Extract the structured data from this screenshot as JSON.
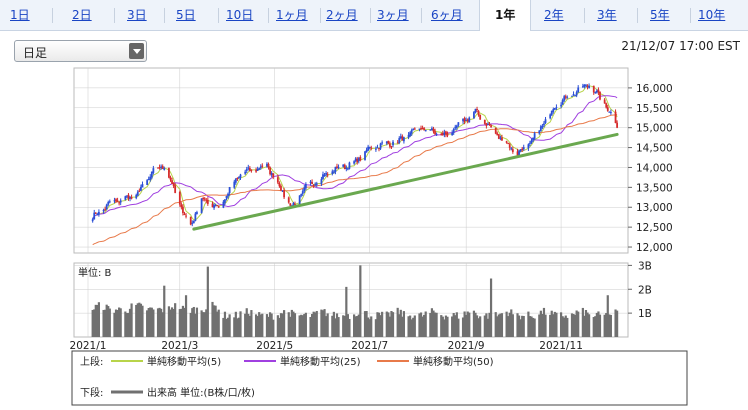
{
  "tabs": [
    {
      "label": "1日",
      "active": false
    },
    {
      "label": "2日",
      "active": false
    },
    {
      "label": "3日",
      "active": false
    },
    {
      "label": "5日",
      "active": false
    },
    {
      "label": "10日",
      "active": false
    },
    {
      "label": "1ヶ月",
      "active": false
    },
    {
      "label": "2ヶ月",
      "active": false
    },
    {
      "label": "3ヶ月",
      "active": false
    },
    {
      "label": "6ヶ月",
      "active": false
    },
    {
      "label": "1年",
      "active": true
    },
    {
      "label": "2年",
      "active": false
    },
    {
      "label": "3年",
      "active": false
    },
    {
      "label": "5年",
      "active": false
    },
    {
      "label": "10年",
      "active": false
    }
  ],
  "period_select": {
    "value": "日足"
  },
  "timestamp": "21/12/07 17:00 EST",
  "colors": {
    "up": "#2b4fd6",
    "down": "#d62b2b",
    "ma5": "#b8d44a",
    "ma25": "#a040e0",
    "ma50": "#e87a4a",
    "trend": "#6aa84f",
    "volume": "#707070",
    "grid": "#cccccc"
  },
  "chart_data": [
    {
      "type": "candlestick",
      "x_ticks": [
        "2021/1",
        "2021/3",
        "2021/5",
        "2021/7",
        "2021/9",
        "2021/11"
      ],
      "y_ticks": [
        "16,000",
        "15,500",
        "15,000",
        "14,500",
        "14,000",
        "13,500",
        "13,000",
        "12,500",
        "12,000"
      ],
      "ylim": [
        11850,
        16500
      ],
      "grid": true,
      "close_anchors": [
        [
          "2021-01-04",
          12750
        ],
        [
          "2021-01-15",
          13100
        ],
        [
          "2021-02-01",
          13300
        ],
        [
          "2021-02-12",
          13900
        ],
        [
          "2021-02-19",
          14050
        ],
        [
          "2021-03-04",
          12800
        ],
        [
          "2021-03-08",
          12550
        ],
        [
          "2021-03-15",
          13200
        ],
        [
          "2021-03-26",
          13000
        ],
        [
          "2021-04-09",
          13850
        ],
        [
          "2021-04-26",
          14050
        ],
        [
          "2021-05-12",
          13000
        ],
        [
          "2021-05-21",
          13500
        ],
        [
          "2021-06-08",
          13950
        ],
        [
          "2021-06-21",
          14100
        ],
        [
          "2021-07-01",
          14500
        ],
        [
          "2021-07-19",
          14650
        ],
        [
          "2021-08-02",
          15000
        ],
        [
          "2021-08-19",
          14800
        ],
        [
          "2021-09-07",
          15400
        ],
        [
          "2021-09-20",
          14850
        ],
        [
          "2021-10-04",
          14350
        ],
        [
          "2021-10-13",
          14650
        ],
        [
          "2021-10-29",
          15600
        ],
        [
          "2021-11-19",
          16100
        ],
        [
          "2021-11-30",
          15550
        ],
        [
          "2021-12-07",
          15050
        ]
      ],
      "overlays": [
        {
          "name": "単純移動平均(5)",
          "period": 5
        },
        {
          "name": "単純移動平均(25)",
          "period": 25
        },
        {
          "name": "単純移動平均(50)",
          "period": 50
        }
      ],
      "trendline": [
        [
          "2021-03-10",
          12450
        ],
        [
          "2021-12-07",
          14830
        ]
      ]
    },
    {
      "type": "bar",
      "y_ticks": [
        "3B",
        "2B",
        "1B"
      ],
      "ylim": [
        0,
        3.1
      ],
      "unit_label": "単位: B",
      "baseline": 0.9,
      "spikes": [
        [
          "2021-03-05",
          1.75
        ],
        [
          "2021-03-19",
          2.95
        ],
        [
          "2021-02-19",
          2.15
        ],
        [
          "2021-06-16",
          2.1
        ],
        [
          "2021-06-25",
          3.0
        ],
        [
          "2021-09-17",
          2.45
        ],
        [
          "2021-12-01",
          1.75
        ]
      ]
    }
  ],
  "legend": {
    "upper_label": "上段:",
    "lower_label": "下段:",
    "items": [
      {
        "name": "単純移動平均(5)",
        "color_key": "ma5"
      },
      {
        "name": "単純移動平均(25)",
        "color_key": "ma25"
      },
      {
        "name": "単純移動平均(50)",
        "color_key": "ma50"
      }
    ],
    "lower_item": "出来高 単位:(B株/口/枚)"
  }
}
